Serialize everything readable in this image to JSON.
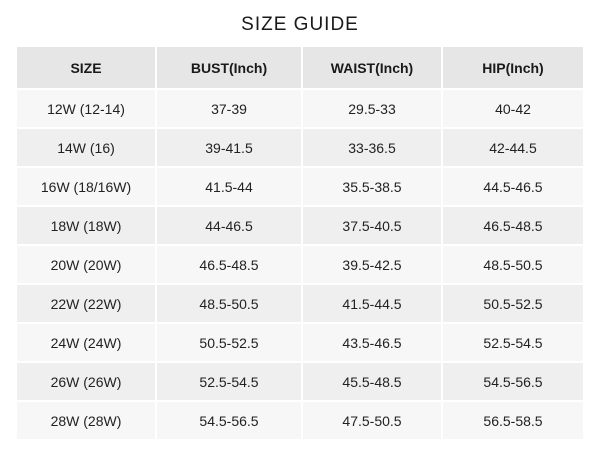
{
  "title": "SIZE GUIDE",
  "table": {
    "headers": [
      "SIZE",
      "BUST(Inch)",
      "WAIST(Inch)",
      "HIP(Inch)"
    ],
    "rows": [
      [
        "12W (12-14)",
        "37-39",
        "29.5-33",
        "40-42"
      ],
      [
        "14W (16)",
        "39-41.5",
        "33-36.5",
        "42-44.5"
      ],
      [
        "16W (18/16W)",
        "41.5-44",
        "35.5-38.5",
        "44.5-46.5"
      ],
      [
        "18W (18W)",
        "44-46.5",
        "37.5-40.5",
        "46.5-48.5"
      ],
      [
        "20W (20W)",
        "46.5-48.5",
        "39.5-42.5",
        "48.5-50.5"
      ],
      [
        "22W (22W)",
        "48.5-50.5",
        "41.5-44.5",
        "50.5-52.5"
      ],
      [
        "24W (24W)",
        "50.5-52.5",
        "43.5-46.5",
        "52.5-54.5"
      ],
      [
        "26W (26W)",
        "52.5-54.5",
        "45.5-48.5",
        "54.5-56.5"
      ],
      [
        "28W (28W)",
        "54.5-56.5",
        "47.5-50.5",
        "56.5-58.5"
      ]
    ]
  }
}
